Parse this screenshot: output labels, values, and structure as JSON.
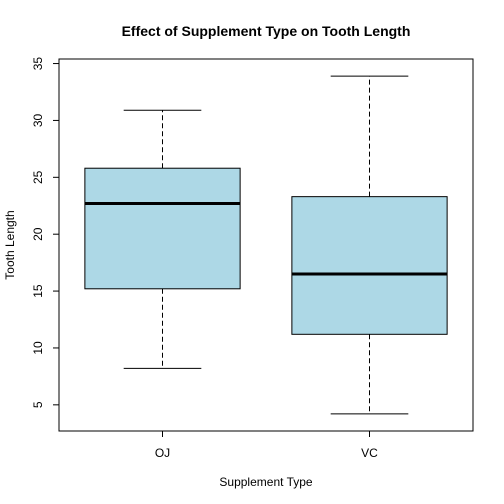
{
  "chart_data": {
    "type": "boxplot",
    "title": "Effect of Supplement Type on Tooth Length",
    "xlabel": "Supplement Type",
    "ylabel": "Tooth Length",
    "categories": [
      "OJ",
      "VC"
    ],
    "boxes": [
      {
        "category": "OJ",
        "min": 8.2,
        "q1": 15.2,
        "median": 22.7,
        "q3": 25.8,
        "max": 30.9
      },
      {
        "category": "VC",
        "min": 4.2,
        "q1": 11.2,
        "median": 16.5,
        "q3": 23.3,
        "max": 33.9
      }
    ],
    "yticks": [
      5,
      10,
      15,
      20,
      25,
      30,
      35
    ],
    "ylim": [
      2.7,
      35.4
    ],
    "grid": false,
    "box_fill": "#add8e6",
    "line_color": "#000000"
  }
}
